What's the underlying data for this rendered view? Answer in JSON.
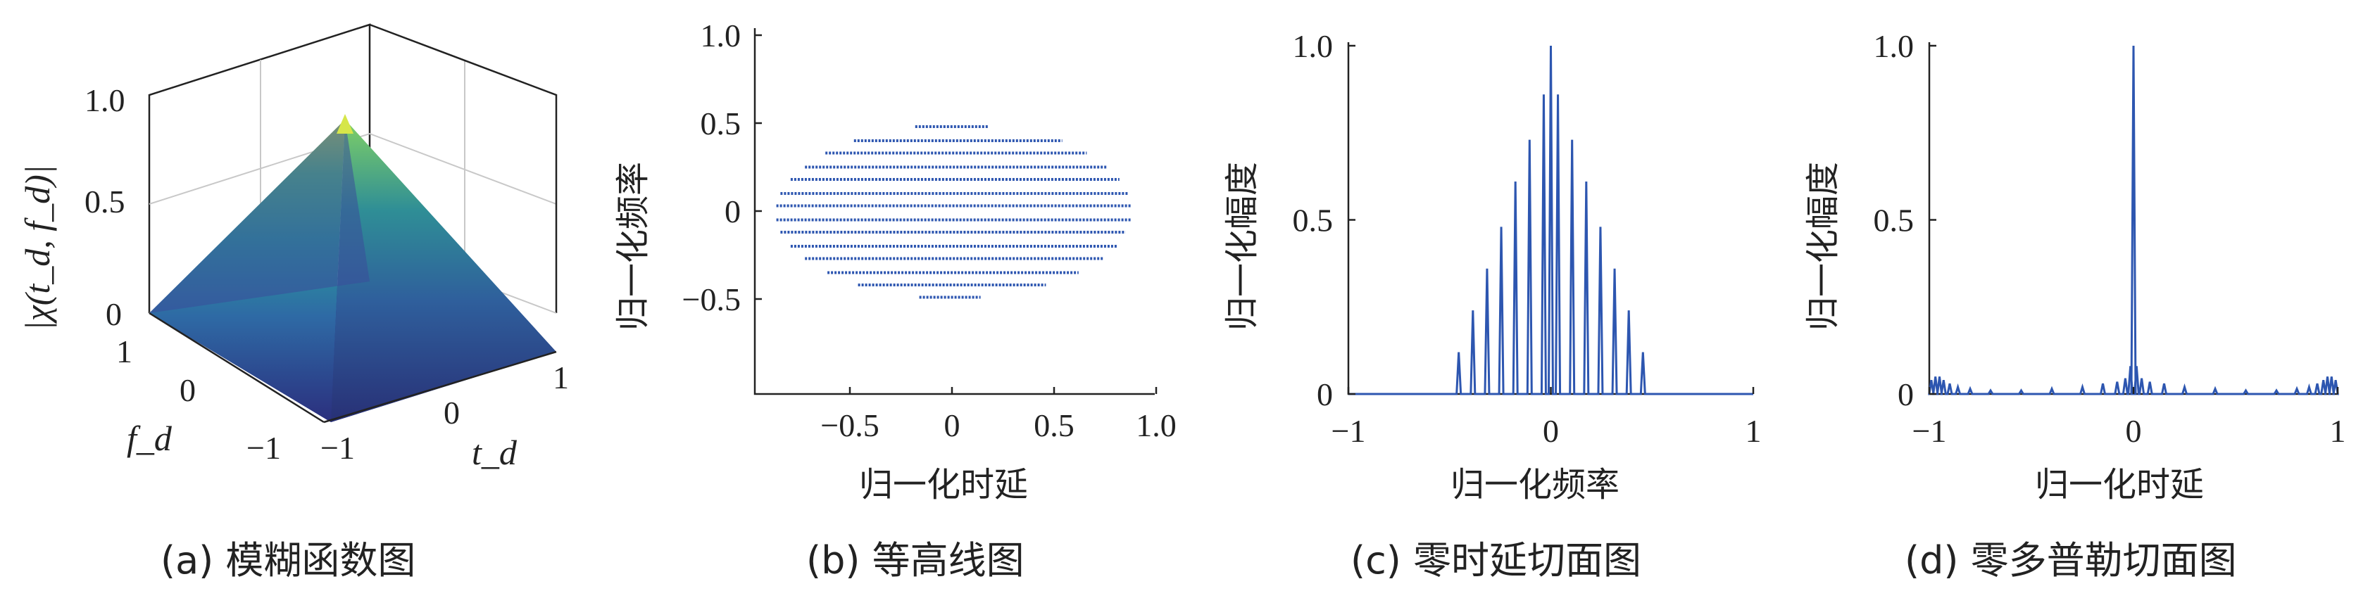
{
  "chart_data": [
    {
      "id": "a",
      "type": "surface3d",
      "caption": "(a) 模糊函数图",
      "zlabel": "|χ(t_d, f_d)|",
      "xlabel": "t_d",
      "ylabel": "f_d",
      "x_ticks": [
        "−1",
        "0",
        "1"
      ],
      "y_ticks": [
        "1",
        "0",
        "−1"
      ],
      "z_ticks": [
        "0",
        "0.5",
        "1.0"
      ],
      "xlim": [
        -1,
        1
      ],
      "ylim": [
        -1,
        1
      ],
      "zlim": [
        0,
        1
      ],
      "peak": {
        "x": 0,
        "y": 0,
        "z": 1.0
      },
      "colormap": [
        "#2b2f7e",
        "#2e6aa5",
        "#2a9d9a",
        "#55c27b",
        "#c8e24b"
      ]
    },
    {
      "id": "b",
      "type": "contour",
      "caption": "(b) 等高线图",
      "xlabel": "归一化时延",
      "ylabel": "归一化频率",
      "x_ticks": [
        "−0.5",
        "0",
        "0.5",
        "1.0"
      ],
      "y_ticks": [
        "1.0",
        "0.5",
        "0",
        "−0.5"
      ],
      "xlim": [
        -1,
        1
      ],
      "ylim": [
        -1,
        1
      ],
      "color": "#2d56b0",
      "contour_rows": [
        {
          "y": 0.48,
          "x": [
            -0.18,
            0.18
          ]
        },
        {
          "y": 0.4,
          "x": [
            -0.48,
            0.54
          ]
        },
        {
          "y": 0.33,
          "x": [
            -0.62,
            0.66
          ]
        },
        {
          "y": 0.25,
          "x": [
            -0.72,
            0.76
          ]
        },
        {
          "y": 0.18,
          "x": [
            -0.79,
            0.82
          ]
        },
        {
          "y": 0.1,
          "x": [
            -0.84,
            0.86
          ]
        },
        {
          "y": 0.03,
          "x": [
            -0.86,
            0.88
          ]
        },
        {
          "y": -0.05,
          "x": [
            -0.86,
            0.88
          ]
        },
        {
          "y": -0.12,
          "x": [
            -0.84,
            0.85
          ]
        },
        {
          "y": -0.2,
          "x": [
            -0.79,
            0.81
          ]
        },
        {
          "y": -0.27,
          "x": [
            -0.72,
            0.74
          ]
        },
        {
          "y": -0.35,
          "x": [
            -0.61,
            0.62
          ]
        },
        {
          "y": -0.42,
          "x": [
            -0.46,
            0.46
          ]
        },
        {
          "y": -0.49,
          "x": [
            -0.16,
            0.14
          ]
        }
      ]
    },
    {
      "id": "c",
      "type": "line",
      "caption": "(c) 零时延切面图",
      "xlabel": "归一化频率",
      "ylabel": "归一化幅度",
      "x_ticks": [
        "−1",
        "0",
        "1"
      ],
      "y_ticks": [
        "1.0",
        "0.5",
        "0"
      ],
      "xlim": [
        -1,
        1
      ],
      "ylim": [
        0,
        1
      ],
      "color": "#2d56b0",
      "spikes": [
        {
          "x": -0.455,
          "y": 0.12
        },
        {
          "x": -0.385,
          "y": 0.24
        },
        {
          "x": -0.315,
          "y": 0.36
        },
        {
          "x": -0.245,
          "y": 0.48
        },
        {
          "x": -0.175,
          "y": 0.61
        },
        {
          "x": -0.105,
          "y": 0.73
        },
        {
          "x": -0.035,
          "y": 0.86
        },
        {
          "x": 0.0,
          "y": 1.0
        },
        {
          "x": 0.035,
          "y": 0.86
        },
        {
          "x": 0.105,
          "y": 0.73
        },
        {
          "x": 0.175,
          "y": 0.61
        },
        {
          "x": 0.245,
          "y": 0.48
        },
        {
          "x": 0.315,
          "y": 0.36
        },
        {
          "x": 0.385,
          "y": 0.24
        },
        {
          "x": 0.455,
          "y": 0.12
        }
      ]
    },
    {
      "id": "d",
      "type": "line",
      "caption": "(d) 零多普勒切面图",
      "xlabel": "归一化时延",
      "ylabel": "归一化幅度",
      "x_ticks": [
        "−1",
        "0",
        "1"
      ],
      "y_ticks": [
        "1.0",
        "0.5",
        "0"
      ],
      "xlim": [
        -1,
        1
      ],
      "ylim": [
        0,
        1
      ],
      "color": "#2d56b0",
      "spikes": [
        {
          "x": -0.99,
          "y": 0.04
        },
        {
          "x": -0.97,
          "y": 0.05
        },
        {
          "x": -0.95,
          "y": 0.05
        },
        {
          "x": -0.93,
          "y": 0.04
        },
        {
          "x": -0.9,
          "y": 0.03
        },
        {
          "x": -0.86,
          "y": 0.02
        },
        {
          "x": -0.8,
          "y": 0.015
        },
        {
          "x": -0.7,
          "y": 0.01
        },
        {
          "x": -0.55,
          "y": 0.01
        },
        {
          "x": -0.4,
          "y": 0.015
        },
        {
          "x": -0.25,
          "y": 0.02
        },
        {
          "x": -0.15,
          "y": 0.03
        },
        {
          "x": -0.08,
          "y": 0.035
        },
        {
          "x": -0.04,
          "y": 0.045
        },
        {
          "x": -0.015,
          "y": 0.08
        },
        {
          "x": 0.0,
          "y": 1.0
        },
        {
          "x": 0.015,
          "y": 0.08
        },
        {
          "x": 0.04,
          "y": 0.045
        },
        {
          "x": 0.08,
          "y": 0.035
        },
        {
          "x": 0.15,
          "y": 0.03
        },
        {
          "x": 0.25,
          "y": 0.02
        },
        {
          "x": 0.4,
          "y": 0.015
        },
        {
          "x": 0.55,
          "y": 0.01
        },
        {
          "x": 0.7,
          "y": 0.01
        },
        {
          "x": 0.8,
          "y": 0.015
        },
        {
          "x": 0.86,
          "y": 0.02
        },
        {
          "x": 0.9,
          "y": 0.03
        },
        {
          "x": 0.93,
          "y": 0.04
        },
        {
          "x": 0.95,
          "y": 0.05
        },
        {
          "x": 0.97,
          "y": 0.05
        },
        {
          "x": 0.99,
          "y": 0.04
        }
      ]
    }
  ]
}
